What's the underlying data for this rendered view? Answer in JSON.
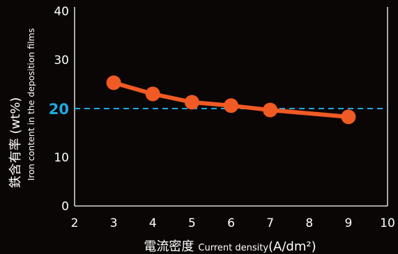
{
  "chart_data": {
    "type": "line",
    "x": [
      3,
      4,
      5,
      6,
      7,
      9
    ],
    "y": [
      25.3,
      23.0,
      21.3,
      20.6,
      19.7,
      18.3
    ],
    "xlim": [
      2,
      10
    ],
    "ylim": [
      0,
      40
    ],
    "x_ticks": [
      "2",
      "3",
      "4",
      "5",
      "6",
      "7",
      "8",
      "9",
      "10"
    ],
    "y_ticks": [
      "0",
      "10",
      "20",
      "30",
      "40"
    ],
    "xlabel": {
      "jp": "電流密度",
      "en": "Current density",
      "unit": "(A/dm²)"
    },
    "ylabel": {
      "jp": "鉄含有率 (wt%)",
      "en": "Iron content in the deposition films"
    },
    "reference_line": {
      "y": 20,
      "label": "20",
      "style": "dashed",
      "color": "#1fa9e1"
    },
    "series_color": "#f05a24",
    "grid": false
  }
}
